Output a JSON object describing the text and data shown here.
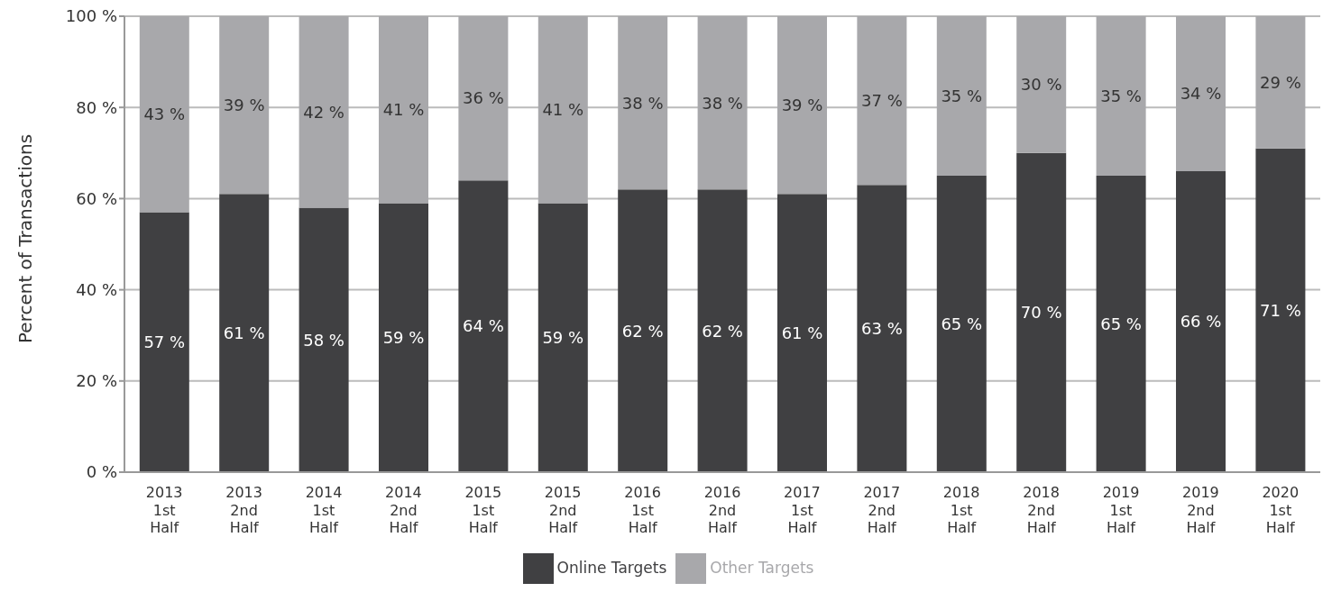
{
  "chart_data": {
    "type": "bar",
    "stacked": true,
    "ylabel": "Percent of Transactions",
    "categories": [
      "2013 1st Half",
      "2013 2nd Half",
      "2014 1st Half",
      "2014 2nd Half",
      "2015 1st Half",
      "2015 2nd Half",
      "2016 1st Half",
      "2016 2nd Half",
      "2017 1st Half",
      "2017 2nd Half",
      "2018 1st Half",
      "2018 2nd Half",
      "2019 1st Half",
      "2019 2nd Half",
      "2020 1st Half"
    ],
    "series": [
      {
        "name": "Online Targets",
        "color": "#404042",
        "values": [
          57,
          61,
          58,
          59,
          64,
          59,
          62,
          62,
          61,
          63,
          65,
          70,
          65,
          66,
          71
        ],
        "value_labels": [
          "57 %",
          "61 %",
          "58 %",
          "59 %",
          "64 %",
          "59 %",
          "62 %",
          "62 %",
          "61 %",
          "63 %",
          "65 %",
          "70 %",
          "65 %",
          "66 %",
          "71 %"
        ]
      },
      {
        "name": "Other Targets",
        "color": "#a8a8ab",
        "values": [
          43,
          39,
          42,
          41,
          36,
          41,
          38,
          38,
          39,
          37,
          35,
          30,
          35,
          34,
          29
        ],
        "value_labels": [
          "43 %",
          "39 %",
          "42 %",
          "41 %",
          "36 %",
          "41 %",
          "38 %",
          "38 %",
          "39 %",
          "37 %",
          "35 %",
          "30 %",
          "35 %",
          "34 %",
          "29 %"
        ]
      }
    ],
    "ylim": [
      0,
      100
    ],
    "yticks": [
      {
        "value": 0,
        "label": "0 %"
      },
      {
        "value": 20,
        "label": "20 %"
      },
      {
        "value": 40,
        "label": "40 %"
      },
      {
        "value": 60,
        "label": "60 %"
      },
      {
        "value": 80,
        "label": "80 %"
      },
      {
        "value": 100,
        "label": "100 %"
      }
    ],
    "grid": "y",
    "legend": "bottom"
  }
}
